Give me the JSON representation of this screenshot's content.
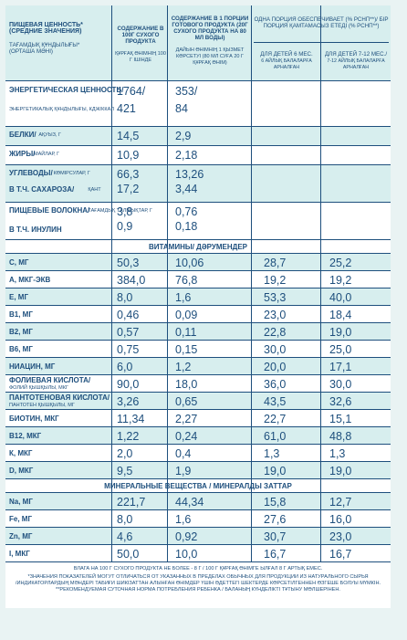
{
  "header": {
    "col1": "ПИЩЕВАЯ ЦЕННОСТЬ* (СРЕДНИЕ ЗНАЧЕНИЯ)",
    "col1_kz": "ТАҒАМДЫҚ ҚҰНДЫЛЫҒЫ* (ОРТАША МӘНІ)",
    "col2": "СОДЕРЖАНИЕ В 100Г СУХОГО ПРОДУКТА",
    "col2_kz": "ҚҰРҒАҚ ӨНІМНІҢ 100 Г ІШІНДЕ",
    "col3": "СОДЕРЖАНИЕ В 1 ПОРЦИИ ГОТОВОГО ПРОДУКТА (20Г СУХОГО ПРОДУКТА НА 80 МЛ ВОДЫ)",
    "col3_kz": "ДАЙЫН ӨНІМНІҢ 1 ҚЫЗМЕТ КӨРСЕТУІ (80 МЛ СУҒА 20 Г ҚҰРҒАҚ ӨНІМ)",
    "col45": "ОДНА ПОРЦИЯ ОБЕСПЕЧИВАЕТ (% РСНП**)/ БІР ПОРЦИЯ ҚАМТАМАСЫЗ ЕТЕДІ (% РСНП**)",
    "col4": "ДЛЯ ДЕТЕЙ 6 МЕС.",
    "col4_kz": "6 АЙЛЫҚ БАЛАЛАРҒА АРНАЛҒАН",
    "col5": "ДЛЯ ДЕТЕЙ 7-12 МЕС./",
    "col5_kz": "7-12 АЙЛЫҚ БАЛАЛАРҒА АРНАЛҒАН"
  },
  "nutrients": [
    {
      "label": "ЭНЕРГЕТИЧЕСКАЯ ЦЕННОСТЬ/",
      "sub": "ЭНЕРГЕТИКАЛЫҚ ҚҰНДЫЛЫҒЫ, КДЖ/ККАЛ",
      "v1": "1764/",
      "v1b": "421",
      "v2": "353/",
      "v2b": "84"
    },
    {
      "label": "БЕЛКИ/",
      "sub": "АҚУЫЗ, Г",
      "v1": "14,5",
      "v2": "2,9"
    },
    {
      "label": "ЖИРЫ/",
      "sub": "МАЙЛАР, Г",
      "v1": "10,9",
      "v2": "2,18"
    },
    {
      "label": "УГЛЕВОДЫ/",
      "sub": "КӨМІРСУЛАР, Г",
      "label2": "В Т.Ч. САХАРОЗА/",
      "sub2": "ҚАНТ",
      "v1": "66,3",
      "v1b": "17,2",
      "v2": "13,26",
      "v2b": "3,44"
    },
    {
      "label": "ПИЩЕВЫЕ ВОЛОКНА/",
      "sub": "ТАҒАМДЫҚ ТАЛШЫҚТАР, Г",
      "label2": "В Т.Ч. ИНУЛИН",
      "v1": "3,8",
      "v1b": "0,9",
      "v2": "0,76",
      "v2b": "0,18"
    }
  ],
  "vitamins_title": "ВИТАМИНЫ/ ДӘРУМЕНДЕР",
  "vitamins": [
    {
      "label": "С, МГ",
      "v1": "50,3",
      "v2": "10,06",
      "v3": "28,7",
      "v4": "25,2"
    },
    {
      "label": "А, МКГ-ЭКВ",
      "v1": "384,0",
      "v2": "76,8",
      "v3": "19,2",
      "v4": "19,2"
    },
    {
      "label": "Е, МГ",
      "v1": "8,0",
      "v2": "1,6",
      "v3": "53,3",
      "v4": "40,0"
    },
    {
      "label": "В1, МГ",
      "v1": "0,46",
      "v2": "0,09",
      "v3": "23,0",
      "v4": "18,4"
    },
    {
      "label": "В2, МГ",
      "v1": "0,57",
      "v2": "0,11",
      "v3": "22,8",
      "v4": "19,0"
    },
    {
      "label": "В6, МГ",
      "v1": "0,75",
      "v2": "0,15",
      "v3": "30,0",
      "v4": "25,0"
    },
    {
      "label": "НИАЦИН, МГ",
      "v1": "6,0",
      "v2": "1,2",
      "v3": "20,0",
      "v4": "17,1"
    },
    {
      "label": "ФОЛИЕВАЯ КИСЛОТА/",
      "sub": "ФОЛИЙ ҚЫШҚЫЛЫ, МКГ",
      "v1": "90,0",
      "v2": "18,0",
      "v3": "36,0",
      "v4": "30,0"
    },
    {
      "label": "ПАНТОТЕНОВАЯ КИСЛОТА/",
      "sub": "ПАНТОТЕН ҚЫШҚЫЛЫ, МГ",
      "v1": "3,26",
      "v2": "0,65",
      "v3": "43,5",
      "v4": "32,6"
    },
    {
      "label": "БИОТИН, МКГ",
      "v1": "11,34",
      "v2": "2,27",
      "v3": "22,7",
      "v4": "15,1"
    },
    {
      "label": "В12, МКГ",
      "v1": "1,22",
      "v2": "0,24",
      "v3": "61,0",
      "v4": "48,8"
    },
    {
      "label": "К, МКГ",
      "v1": "2,0",
      "v2": "0,4",
      "v3": "1,3",
      "v4": "1,3"
    },
    {
      "label": "D, МКГ",
      "v1": "9,5",
      "v2": "1,9",
      "v3": "19,0",
      "v4": "19,0"
    }
  ],
  "minerals_title": "МИНЕРАЛЬНЫЕ ВЕЩЕСТВА / МИНЕРАЛДЫ ЗАТТАР",
  "minerals": [
    {
      "label": "Na, МГ",
      "v1": "221,7",
      "v2": "44,34",
      "v3": "15,8",
      "v4": "12,7"
    },
    {
      "label": "Fe, МГ",
      "v1": "8,0",
      "v2": "1,6",
      "v3": "27,6",
      "v4": "16,0"
    },
    {
      "label": "Zn, МГ",
      "v1": "4,6",
      "v2": "0,92",
      "v3": "30,7",
      "v4": "23,0"
    },
    {
      "label": "I, МКГ",
      "v1": "50,0",
      "v2": "10,0",
      "v3": "16,7",
      "v4": "16,7"
    }
  ],
  "footnotes": [
    "ВЛАГА НА 100 Г СУХОГО ПРОДУКТА НЕ БОЛЕЕ - 8 Г / 100 Г ҚҰРҒАҚ ӨНІМГЕ ЫЛҒАЛ 8 Г АРТЫҚ ЕМЕС.",
    "*ЗНАЧЕНИЯ ПОКАЗАТЕЛЕЙ МОГУТ ОТЛИЧАТЬСЯ ОТ УКАЗАННЫХ В ПРЕДЕЛАХ ОБЫЧНЫХ ДЛЯ ПРОДУКЦИИ ИЗ НАТУРАЛЬНОГО СЫРЬЯ",
    "/ИНДИКАТОРЛАРДЫҢ МӘНДЕРІ ТАБИҒИ ШИКІЗАТТАН АЛЫНҒАН ӨНІМДЕР ҮШІН ӘДЕТТЕГІ ШЕКТЕРДЕ КӨРСЕТІЛГЕННЕН ӨЗГЕШЕ БОЛУЫ МҮМКІН.",
    "**РЕКОМЕНДУЕМАЯ СУТОЧНАЯ НОРМА ПОТРЕБЛЕНИЯ РЕБЕНКА / БАЛАНЫҢ КҮНДЕЛІКТІ ТҰТЫНУ МӨЛШЕРІНЕН."
  ]
}
